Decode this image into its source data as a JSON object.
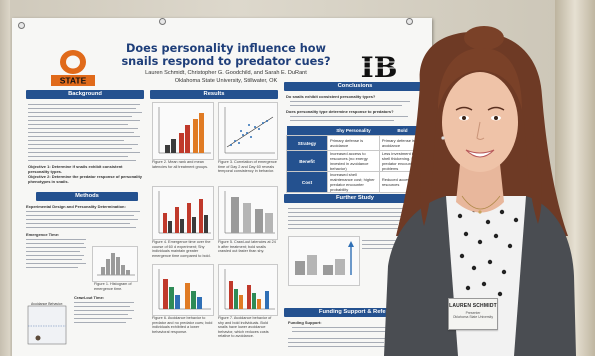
{
  "poster": {
    "title": "Does personality influence how snails respond to predator cues?",
    "authors": "Lauren Schmidt, Christopher G. Goodchild, and Sarah E. DuRant",
    "affiliation": "Oklahoma State University, Stillwater, OK",
    "logo_left": "STATE",
    "logo_right": "IB",
    "sections": {
      "background": "Background",
      "results": "Results",
      "conclusions": "Conclusions",
      "methods": "Methods",
      "further_study": "Further Study",
      "funding": "Funding Support & Refere"
    },
    "conclusion_questions": [
      "Do snails exhibit consistent personality types?",
      "Does personality type determine response to predators?"
    ],
    "conclusion_table": {
      "headers": [
        "",
        "Shy Personality",
        "Bold"
      ],
      "rows": [
        {
          "label": "Strategy",
          "shy": "Primary defense is avoidance",
          "bold": "Primary defense is avoidance"
        },
        {
          "label": "Benefit",
          "shy": "Increased access to resources (no energy invested in avoidance behavior)",
          "bold": "Less investment in shell thickening. No predator encounter problems"
        },
        {
          "label": "Cost",
          "shy": "Increased shell maintenance cost; higher predator encounter probability",
          "bold": "Reduced access to resources"
        }
      ]
    },
    "methods_headings": [
      "Experimental Design and Personality Determination:",
      "Emergence Time:",
      "Crawl-out Time:",
      "Avoidance Behavior:"
    ],
    "figure_captions": [
      "Figure 2. Mean rank and mean latencies for all treatment groups.",
      "Figure 3. Correlation of emergence time of Day 2 and Day 60 reveals temporal consistency in behavior.",
      "Figure 4. Emergence time over the course of 60 d experiment; Shy individuals maintain greater emergence time compared to bold.",
      "Figure 5. Crawl-out latencies at 24 h after treatment; bold snails crawled out faster than shy.",
      "Figure 6. Avoidance behavior to predator and no predator cues; bold individuals exhibited a lower behavioral response.",
      "Figure 7. Avoidance behavior of shy and bold individuals. Bold snails have lower avoidance behavior, which reduces costs relative to avoidance.",
      "Figure 1. Histogram of emergence time."
    ],
    "objective_1": "Objective 1: Determine if snails exhibit consistent personality types.",
    "objective_2": "Objective 2: Determine the predator response of personality phenotypes in snails.",
    "refs_label": "Funding Support:",
    "chart_colors": {
      "dark": "#3b3b3b",
      "red": "#c0392b",
      "green": "#2e8b57",
      "blue": "#2f6fb5",
      "orange": "#e07b24",
      "grey": "#9a9a9a"
    }
  },
  "badge": {
    "name": "LAUREN SCHMIDT",
    "role": "Presenter",
    "org": "Oklahoma State University"
  }
}
